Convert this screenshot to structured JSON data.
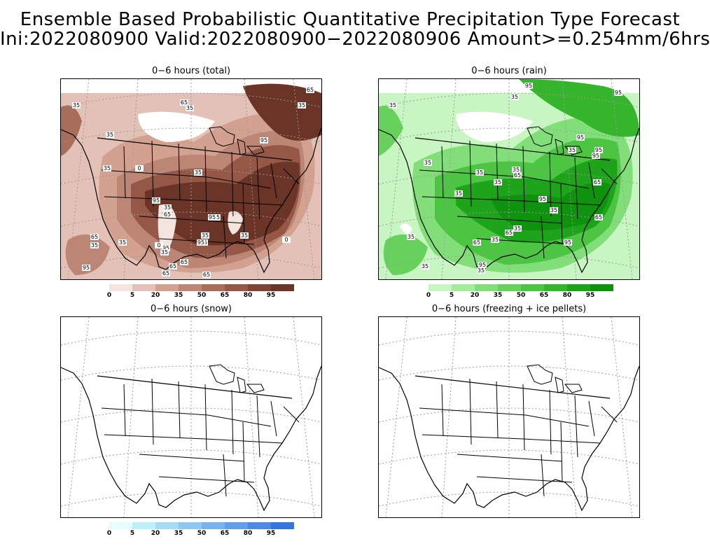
{
  "header": {
    "line1": "Ensemble Based Probabilistic Quantitative Precipitation Type Forecast",
    "line2": "Ini:2022080900 Valid:2022080900−2022080906 Amount>=0.254mm/6hrs"
  },
  "panels": {
    "total": {
      "title": "0−6 hours (total)",
      "colorbar": {
        "labels": [
          "0",
          "5",
          "20",
          "35",
          "50",
          "65",
          "80",
          "95"
        ],
        "colors": [
          "#f3e4df",
          "#e3c1b6",
          "#d2a190",
          "#bd8573",
          "#a96d5b",
          "#955746",
          "#7e4434",
          "#6a3426"
        ]
      },
      "contour_labels": [
        "35",
        "35",
        "0",
        "35",
        "95",
        "65",
        "35",
        "95",
        "35",
        "65",
        "35",
        "95",
        "65",
        "35",
        "35",
        "95",
        "0",
        "35",
        "65",
        "95",
        "35",
        "65",
        "35",
        "0",
        "65",
        "35",
        "65",
        "95",
        "95",
        "65",
        "65"
      ]
    },
    "rain": {
      "title": "0−6 hours (rain)",
      "colorbar": {
        "labels": [
          "0",
          "5",
          "20",
          "35",
          "50",
          "65",
          "80",
          "95"
        ],
        "colors": [
          "#c8f6c2",
          "#a4eb9c",
          "#82de79",
          "#66d25c",
          "#4cc543",
          "#34b52c",
          "#1ea41a",
          "#0f930e"
        ]
      },
      "contour_labels": [
        "95",
        "35",
        "35",
        "95",
        "35",
        "35",
        "35",
        "65",
        "35",
        "35",
        "95",
        "35",
        "95",
        "95",
        "35",
        "65",
        "65",
        "35",
        "35",
        "95",
        "35",
        "95",
        "35",
        "65",
        "95",
        "35",
        "65"
      ]
    },
    "snow": {
      "title": "0−6 hours (snow)",
      "colorbar": {
        "labels": [
          "0",
          "5",
          "20",
          "35",
          "50",
          "65",
          "80",
          "95"
        ],
        "colors": [
          "#e6fdff",
          "#bdf0fb",
          "#a3dcf5",
          "#8ec8f1",
          "#78b3ee",
          "#629ee9",
          "#4d89e5",
          "#3575e0"
        ]
      }
    },
    "ice": {
      "title": "0−6 hours (freezing + ice pellets)"
    }
  }
}
